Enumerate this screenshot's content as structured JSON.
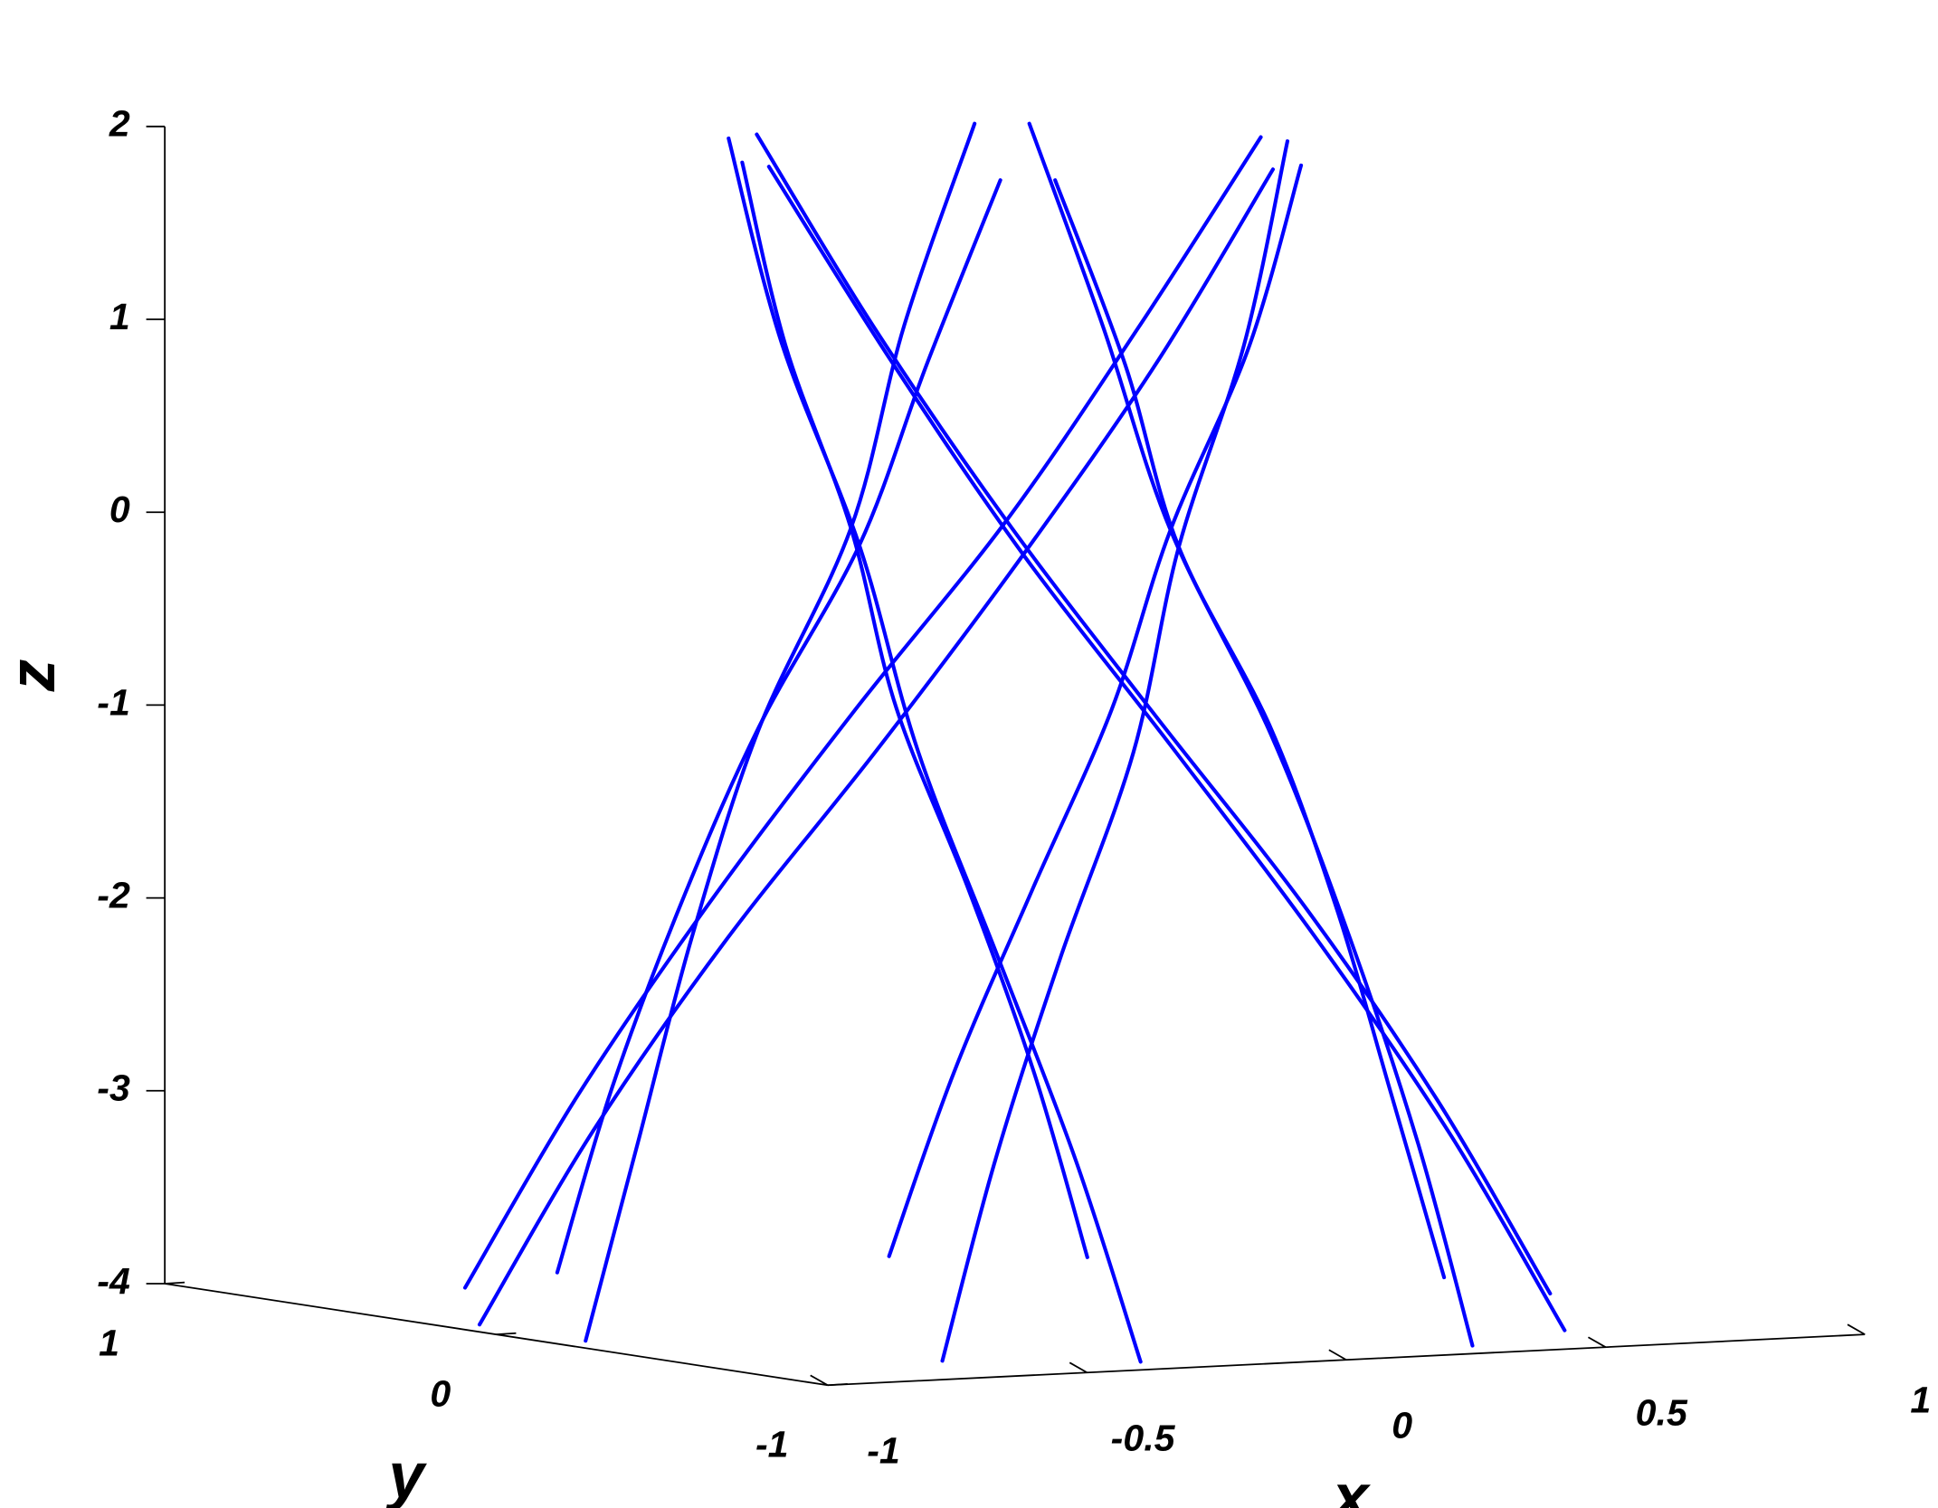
{
  "chart_data": {
    "type": "line3d",
    "color": "#0000ff",
    "xlabel": "x",
    "ylabel": "y",
    "zlabel": "z",
    "xlim": [
      -1,
      1
    ],
    "ylim": [
      -1,
      1
    ],
    "zlim": [
      -4,
      2
    ],
    "xticks": [
      -1,
      -0.5,
      0,
      0.5,
      1
    ],
    "yticks": [
      -1,
      0,
      1
    ],
    "zticks": [
      -4,
      -3,
      -2,
      -1,
      0,
      1,
      2
    ],
    "z": [
      -4,
      -3,
      -2,
      -1,
      0,
      1,
      2
    ],
    "series": [
      {
        "x": [
          0.32,
          0.33,
          0.34,
          0.34,
          0.3,
          0.31,
          0.29
        ],
        "y": [
          -0.88,
          -0.7,
          -0.48,
          -0.24,
          0,
          0.22,
          0.41
        ]
      },
      {
        "x": [
          0.93,
          0.77,
          0.59,
          0.38,
          0.15,
          -0.03,
          -0.21
        ],
        "y": [
          -0.16,
          -0.07,
          0.05,
          0.18,
          0.26,
          0.38,
          0.45
        ]
      },
      {
        "x": [
          0.6,
          0.44,
          0.25,
          0.04,
          -0.15,
          -0.34,
          -0.5
        ],
        "y": [
          0.72,
          0.63,
          0.53,
          0.42,
          0.26,
          0.16,
          0.04
        ]
      },
      {
        "x": [
          -0.32,
          -0.33,
          -0.34,
          -0.34,
          -0.3,
          -0.31,
          -0.29
        ],
        "y": [
          0.88,
          0.7,
          0.48,
          0.24,
          0,
          -0.22,
          -0.41
        ]
      },
      {
        "x": [
          -0.93,
          -0.77,
          -0.59,
          -0.38,
          -0.15,
          0.03,
          0.21
        ],
        "y": [
          0.16,
          0.07,
          -0.05,
          -0.18,
          -0.26,
          -0.38,
          -0.45
        ]
      },
      {
        "x": [
          -0.6,
          -0.44,
          -0.25,
          -0.04,
          0.15,
          0.34,
          0.5
        ],
        "y": [
          -0.72,
          -0.63,
          -0.53,
          -0.42,
          -0.26,
          -0.16,
          -0.04
        ]
      },
      {
        "x": [
          0.32,
          0.33,
          0.34,
          0.34,
          0.3,
          0.31,
          0.29
        ],
        "y": [
          0.88,
          0.7,
          0.48,
          0.24,
          0,
          -0.22,
          -0.41
        ]
      },
      {
        "x": [
          -0.6,
          -0.44,
          -0.25,
          -0.04,
          0.15,
          0.34,
          0.5
        ],
        "y": [
          0.72,
          0.63,
          0.53,
          0.42,
          0.26,
          0.16,
          0.04
        ]
      },
      {
        "x": [
          -0.93,
          -0.77,
          -0.59,
          -0.38,
          -0.15,
          0.03,
          0.21
        ],
        "y": [
          -0.16,
          -0.07,
          0.05,
          0.18,
          0.26,
          0.38,
          0.45
        ]
      },
      {
        "x": [
          -0.32,
          -0.33,
          -0.34,
          -0.34,
          -0.3,
          -0.31,
          -0.29
        ],
        "y": [
          -0.88,
          -0.7,
          -0.48,
          -0.24,
          0,
          0.22,
          0.41
        ]
      },
      {
        "x": [
          0.6,
          0.44,
          0.25,
          0.04,
          -0.15,
          -0.34,
          -0.5
        ],
        "y": [
          -0.72,
          -0.63,
          -0.53,
          -0.42,
          -0.26,
          -0.16,
          -0.04
        ]
      },
      {
        "x": [
          0.93,
          0.77,
          0.59,
          0.38,
          0.15,
          -0.03,
          -0.21
        ],
        "y": [
          0.16,
          0.07,
          -0.05,
          -0.18,
          -0.26,
          -0.38,
          -0.45
        ]
      }
    ]
  }
}
